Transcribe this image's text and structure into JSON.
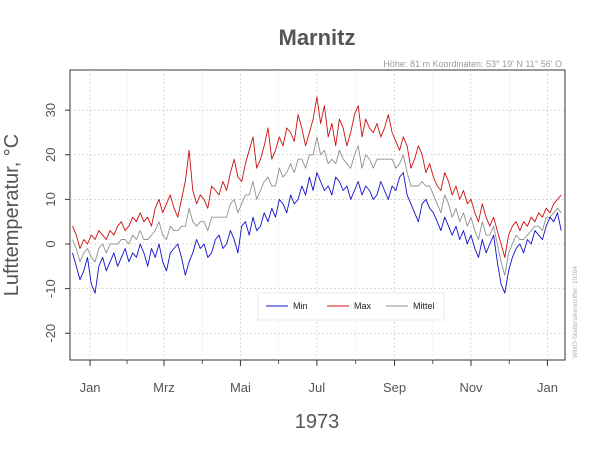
{
  "chart_data": {
    "type": "line",
    "title": "Marnitz",
    "meta": "Höhe: 81 m   Koordinaten: 53° 19' N  11° 56' O",
    "xlabel": "1973",
    "ylabel": "Lufttemperatur, °C",
    "side_note": "WMO-Stationskennziffer: 10264",
    "ylim": [
      -26,
      39
    ],
    "yticks": [
      -20,
      -10,
      0,
      10,
      20,
      30
    ],
    "x_range_days": [
      -15,
      380
    ],
    "month_ticks": [
      {
        "label": "Jan",
        "day": 1
      },
      {
        "label": "Mrz",
        "day": 60
      },
      {
        "label": "Mai",
        "day": 121
      },
      {
        "label": "Jul",
        "day": 182
      },
      {
        "label": "Sep",
        "day": 244
      },
      {
        "label": "Nov",
        "day": 305
      },
      {
        "label": "Jan",
        "day": 366
      }
    ],
    "grid": true,
    "legend_position": "bottom-center",
    "series": [
      {
        "name": "Min",
        "color": "#1010cc",
        "x": [
          -13,
          -10,
          -7,
          -4,
          -1,
          2,
          5,
          8,
          11,
          14,
          17,
          20,
          23,
          26,
          29,
          32,
          35,
          38,
          41,
          44,
          47,
          50,
          53,
          56,
          59,
          62,
          65,
          68,
          71,
          74,
          77,
          80,
          83,
          86,
          89,
          92,
          95,
          98,
          101,
          104,
          107,
          110,
          113,
          116,
          119,
          122,
          125,
          128,
          131,
          134,
          137,
          140,
          143,
          146,
          149,
          152,
          155,
          158,
          161,
          164,
          167,
          170,
          173,
          176,
          179,
          182,
          185,
          188,
          191,
          194,
          197,
          200,
          203,
          206,
          209,
          212,
          215,
          218,
          221,
          224,
          227,
          230,
          233,
          236,
          239,
          242,
          245,
          248,
          251,
          254,
          257,
          260,
          263,
          266,
          269,
          272,
          275,
          278,
          281,
          284,
          287,
          290,
          293,
          296,
          299,
          302,
          305,
          308,
          311,
          314,
          317,
          320,
          323,
          326,
          329,
          332,
          335,
          338,
          341,
          344,
          347,
          350,
          353,
          356,
          359,
          362,
          365,
          368,
          371,
          374,
          377
        ],
        "values": [
          -2,
          -5,
          -8,
          -6,
          -3,
          -9,
          -11,
          -5,
          -3,
          -6,
          -4,
          -2,
          -5,
          -3,
          -1,
          -4,
          -2,
          -3,
          0,
          -2,
          -5,
          -1,
          -3,
          0,
          -4,
          -6,
          -2,
          -1,
          0,
          -3,
          -7,
          -4,
          -2,
          1,
          -1,
          0,
          -3,
          -2,
          1,
          2,
          -1,
          0,
          3,
          1,
          -2,
          4,
          5,
          2,
          6,
          3,
          4,
          7,
          5,
          8,
          6,
          10,
          9,
          7,
          11,
          9,
          10,
          13,
          11,
          15,
          12,
          16,
          14,
          12,
          13,
          11,
          15,
          14,
          12,
          13,
          10,
          12,
          14,
          11,
          13,
          12,
          10,
          11,
          14,
          12,
          10,
          13,
          12,
          15,
          16,
          11,
          9,
          7,
          5,
          9,
          10,
          8,
          7,
          5,
          3,
          6,
          4,
          2,
          4,
          1,
          3,
          0,
          2,
          -1,
          -3,
          1,
          -2,
          0,
          2,
          -4,
          -9,
          -11,
          -6,
          -3,
          -1,
          0,
          -2,
          1,
          0,
          3,
          2,
          1,
          4,
          6,
          5,
          7,
          3
        ]
      },
      {
        "name": "Max",
        "color": "#cc1010",
        "x": [
          -13,
          -10,
          -7,
          -4,
          -1,
          2,
          5,
          8,
          11,
          14,
          17,
          20,
          23,
          26,
          29,
          32,
          35,
          38,
          41,
          44,
          47,
          50,
          53,
          56,
          59,
          62,
          65,
          68,
          71,
          74,
          77,
          80,
          83,
          86,
          89,
          92,
          95,
          98,
          101,
          104,
          107,
          110,
          113,
          116,
          119,
          122,
          125,
          128,
          131,
          134,
          137,
          140,
          143,
          146,
          149,
          152,
          155,
          158,
          161,
          164,
          167,
          170,
          173,
          176,
          179,
          182,
          185,
          188,
          191,
          194,
          197,
          200,
          203,
          206,
          209,
          212,
          215,
          218,
          221,
          224,
          227,
          230,
          233,
          236,
          239,
          242,
          245,
          248,
          251,
          254,
          257,
          260,
          263,
          266,
          269,
          272,
          275,
          278,
          281,
          284,
          287,
          290,
          293,
          296,
          299,
          302,
          305,
          308,
          311,
          314,
          317,
          320,
          323,
          326,
          329,
          332,
          335,
          338,
          341,
          344,
          347,
          350,
          353,
          356,
          359,
          362,
          365,
          368,
          371,
          374,
          377
        ],
        "values": [
          4,
          2,
          -1,
          1,
          0,
          2,
          1,
          3,
          2,
          1,
          3,
          2,
          4,
          5,
          3,
          4,
          6,
          5,
          7,
          5,
          6,
          4,
          8,
          10,
          7,
          9,
          11,
          8,
          6,
          10,
          14,
          21,
          12,
          9,
          11,
          10,
          8,
          13,
          12,
          11,
          14,
          12,
          16,
          19,
          15,
          14,
          18,
          21,
          24,
          17,
          19,
          22,
          26,
          19,
          21,
          24,
          22,
          26,
          25,
          23,
          29,
          26,
          22,
          25,
          28,
          33,
          27,
          31,
          24,
          27,
          22,
          28,
          26,
          22,
          25,
          29,
          31,
          24,
          28,
          26,
          25,
          27,
          24,
          26,
          29,
          25,
          23,
          21,
          24,
          22,
          17,
          19,
          22,
          20,
          16,
          18,
          15,
          13,
          12,
          16,
          14,
          11,
          13,
          10,
          12,
          9,
          10,
          7,
          5,
          9,
          6,
          4,
          6,
          3,
          0,
          -3,
          2,
          4,
          5,
          3,
          5,
          4,
          6,
          5,
          7,
          6,
          8,
          7,
          9,
          10,
          11
        ]
      },
      {
        "name": "Mittel",
        "color": "#909090",
        "x": [
          -13,
          -10,
          -7,
          -4,
          -1,
          2,
          5,
          8,
          11,
          14,
          17,
          20,
          23,
          26,
          29,
          32,
          35,
          38,
          41,
          44,
          47,
          50,
          53,
          56,
          59,
          62,
          65,
          68,
          71,
          74,
          77,
          80,
          83,
          86,
          89,
          92,
          95,
          98,
          101,
          104,
          107,
          110,
          113,
          116,
          119,
          122,
          125,
          128,
          131,
          134,
          137,
          140,
          143,
          146,
          149,
          152,
          155,
          158,
          161,
          164,
          167,
          170,
          173,
          176,
          179,
          182,
          185,
          188,
          191,
          194,
          197,
          200,
          203,
          206,
          209,
          212,
          215,
          218,
          221,
          224,
          227,
          230,
          233,
          236,
          239,
          242,
          245,
          248,
          251,
          254,
          257,
          260,
          263,
          266,
          269,
          272,
          275,
          278,
          281,
          284,
          287,
          290,
          293,
          296,
          299,
          302,
          305,
          308,
          311,
          314,
          317,
          320,
          323,
          326,
          329,
          332,
          335,
          338,
          341,
          344,
          347,
          350,
          353,
          356,
          359,
          362,
          365,
          368,
          371,
          374,
          377
        ],
        "values": [
          1,
          -1,
          -4,
          -2,
          -1,
          -3,
          -4,
          -1,
          0,
          -2,
          0,
          0,
          0,
          1,
          1,
          0,
          2,
          1,
          3,
          1,
          1,
          2,
          3,
          5,
          2,
          1,
          4,
          3,
          3,
          4,
          4,
          8,
          5,
          4,
          5,
          5,
          3,
          6,
          6,
          6,
          6,
          6,
          9,
          10,
          7,
          9,
          11,
          11,
          14,
          10,
          12,
          14,
          15,
          13,
          13,
          17,
          15,
          16,
          18,
          16,
          19,
          19,
          17,
          20,
          20,
          24,
          20,
          21,
          18,
          19,
          18,
          21,
          19,
          18,
          17,
          20,
          22,
          17,
          20,
          19,
          17,
          19,
          19,
          19,
          19,
          19,
          17,
          18,
          20,
          16,
          13,
          13,
          13,
          14,
          13,
          13,
          11,
          9,
          7,
          11,
          9,
          6,
          8,
          5,
          7,
          4,
          6,
          3,
          1,
          5,
          2,
          2,
          4,
          0,
          -4,
          -7,
          -2,
          0,
          2,
          1,
          1,
          2,
          3,
          4,
          4,
          3,
          6,
          6,
          7,
          8,
          7
        ]
      }
    ]
  }
}
